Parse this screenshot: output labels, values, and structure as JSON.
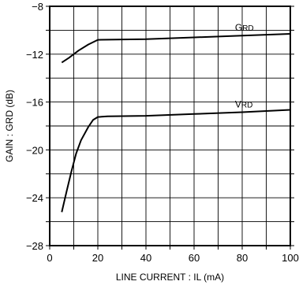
{
  "chart_data": {
    "type": "line",
    "title": "",
    "xlabel": "LINE CURRENT : IL (mA)",
    "ylabel": "GAIN : GRD (dB)",
    "xlim": [
      0,
      100
    ],
    "ylim": [
      -28,
      -8
    ],
    "x_major_ticks": [
      "0",
      "20",
      "40",
      "60",
      "80",
      "100"
    ],
    "y_major_ticks": [
      "-8",
      "-12",
      "-16",
      "-20",
      "-24",
      "-28"
    ],
    "grid": true,
    "series": [
      {
        "name": "GRD",
        "points": [
          [
            5,
            -12.7
          ],
          [
            8,
            -12.3
          ],
          [
            12,
            -11.7
          ],
          [
            16,
            -11.2
          ],
          [
            20,
            -10.8
          ],
          [
            40,
            -10.75
          ],
          [
            60,
            -10.6
          ],
          [
            80,
            -10.45
          ],
          [
            100,
            -10.3
          ]
        ]
      },
      {
        "name": "VRD",
        "points": [
          [
            5,
            -25.2
          ],
          [
            7,
            -23.5
          ],
          [
            9,
            -21.8
          ],
          [
            11,
            -20.3
          ],
          [
            13,
            -19.2
          ],
          [
            16,
            -18.1
          ],
          [
            18,
            -17.5
          ],
          [
            20,
            -17.25
          ],
          [
            24,
            -17.2
          ],
          [
            40,
            -17.15
          ],
          [
            60,
            -17.0
          ],
          [
            80,
            -16.85
          ],
          [
            100,
            -16.65
          ]
        ]
      }
    ]
  }
}
